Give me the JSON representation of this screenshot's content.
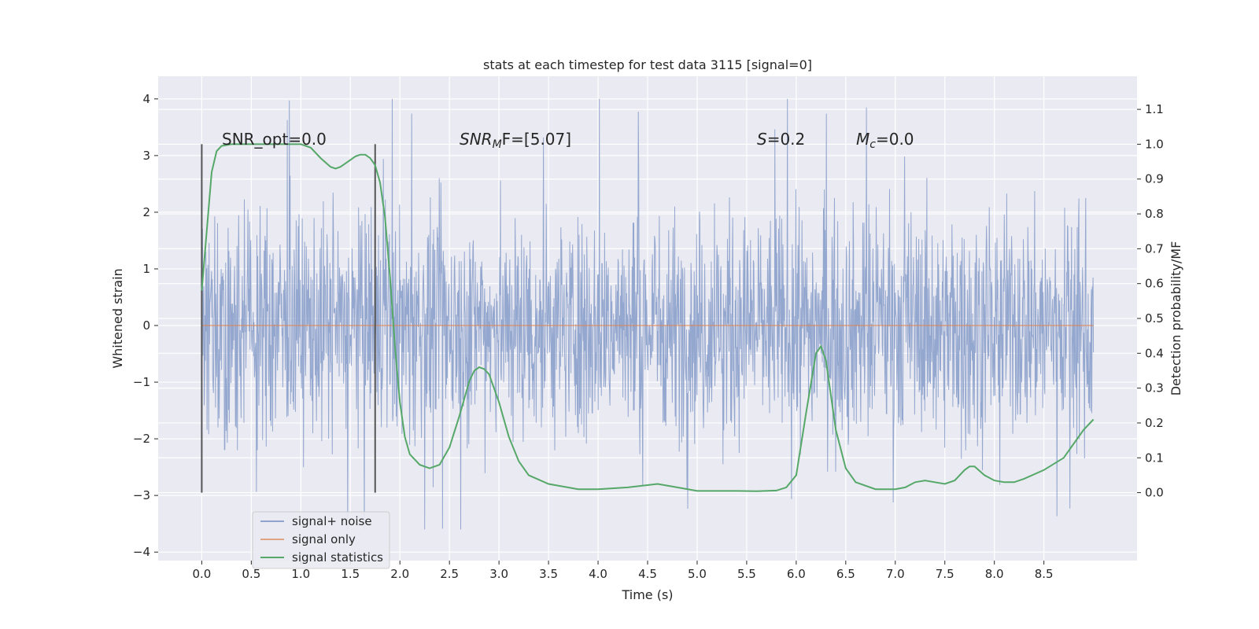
{
  "chart_data": {
    "type": "line",
    "title": "stats at each timestep for test data 3115 [signal=0]",
    "xlabel": "Time (s)",
    "ylabel_left": "Whitened strain",
    "ylabel_right": "Detection probability/MF",
    "xlim": [
      -0.44,
      9.44
    ],
    "ylim_left": [
      -4.15,
      4.4
    ],
    "ylim_right": [
      -0.195,
      1.195
    ],
    "x_ticks": [
      "0.0",
      "0.5",
      "1.0",
      "1.5",
      "2.0",
      "2.5",
      "3.0",
      "3.5",
      "4.0",
      "4.5",
      "5.0",
      "5.5",
      "6.0",
      "6.5",
      "7.0",
      "7.5",
      "8.0",
      "8.5"
    ],
    "y_left_ticks": [
      "−4",
      "−3",
      "−2",
      "−1",
      "0",
      "1",
      "2",
      "3",
      "4"
    ],
    "y_right_ticks": [
      "0.0",
      "0.1",
      "0.2",
      "0.3",
      "0.4",
      "0.5",
      "0.6",
      "0.7",
      "0.8",
      "0.9",
      "1.0",
      "1.1"
    ],
    "grid": true,
    "legend_position": "lower-left",
    "annotations": {
      "snr_opt": "SNR_opt=0.0",
      "snr_mf_main": "SNR",
      "snr_mf_sub": "M",
      "snr_mf_rest": "F=[5.07]",
      "s_main": "S",
      "s_rest": "=0.2",
      "mc_main": "M",
      "mc_sub": "c",
      "mc_rest": "=0.0"
    },
    "vertical_markers": [
      0.0,
      1.75
    ],
    "series": [
      {
        "name": "signal+ noise",
        "color": "#8fa3cc",
        "axis": "left",
        "x_range": [
          0.0,
          9.0
        ],
        "envelope": "dense noise, mostly within ±1.5, peaks to about 4.0 and down to about −3.6"
      },
      {
        "name": "signal only",
        "color": "#dd8452",
        "axis": "left",
        "x": [
          0.0,
          9.0
        ],
        "y": [
          0.0,
          0.0
        ]
      },
      {
        "name": "signal statistics",
        "color": "#55a868",
        "axis": "right",
        "x": [
          0.0,
          0.05,
          0.1,
          0.15,
          0.2,
          0.3,
          0.5,
          0.8,
          1.0,
          1.1,
          1.2,
          1.3,
          1.35,
          1.4,
          1.5,
          1.55,
          1.6,
          1.65,
          1.7,
          1.75,
          1.8,
          1.85,
          1.9,
          1.95,
          2.0,
          2.05,
          2.1,
          2.2,
          2.3,
          2.4,
          2.5,
          2.6,
          2.7,
          2.75,
          2.8,
          2.85,
          2.9,
          3.0,
          3.1,
          3.2,
          3.3,
          3.5,
          3.8,
          4.0,
          4.3,
          4.6,
          4.8,
          5.0,
          5.2,
          5.4,
          5.6,
          5.8,
          5.9,
          6.0,
          6.1,
          6.2,
          6.25,
          6.3,
          6.4,
          6.5,
          6.6,
          6.8,
          7.0,
          7.1,
          7.2,
          7.3,
          7.4,
          7.5,
          7.6,
          7.7,
          7.75,
          7.8,
          7.9,
          8.0,
          8.1,
          8.2,
          8.3,
          8.5,
          8.7,
          8.8,
          8.9,
          9.0
        ],
        "y": [
          0.58,
          0.75,
          0.92,
          0.98,
          0.995,
          1.0,
          1.0,
          1.0,
          1.0,
          0.99,
          0.96,
          0.935,
          0.93,
          0.935,
          0.955,
          0.965,
          0.97,
          0.97,
          0.96,
          0.94,
          0.89,
          0.79,
          0.62,
          0.42,
          0.26,
          0.16,
          0.11,
          0.08,
          0.07,
          0.08,
          0.13,
          0.22,
          0.32,
          0.35,
          0.36,
          0.355,
          0.34,
          0.26,
          0.16,
          0.09,
          0.05,
          0.025,
          0.01,
          0.01,
          0.015,
          0.025,
          0.015,
          0.005,
          0.005,
          0.005,
          0.004,
          0.006,
          0.015,
          0.05,
          0.23,
          0.4,
          0.42,
          0.38,
          0.18,
          0.07,
          0.03,
          0.01,
          0.01,
          0.015,
          0.03,
          0.035,
          0.03,
          0.025,
          0.035,
          0.065,
          0.075,
          0.075,
          0.05,
          0.035,
          0.03,
          0.03,
          0.04,
          0.065,
          0.1,
          0.14,
          0.18,
          0.21
        ]
      }
    ]
  }
}
